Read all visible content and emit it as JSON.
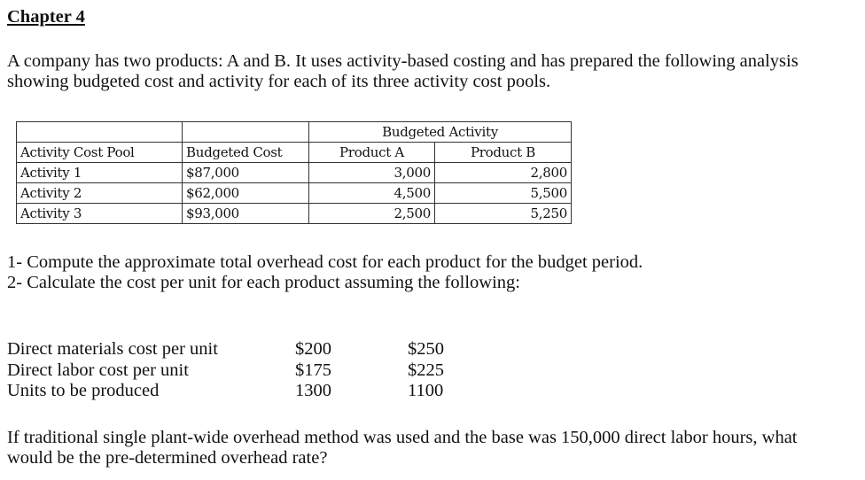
{
  "title": "Chapter 4",
  "intro": [
    "A company has two products: A and B. It uses activity-based costing and has prepared the following analysis",
    "showing budgeted cost and activity for each of its three activity cost pools."
  ],
  "table": {
    "group_header": "Budgeted Activity",
    "headers": [
      "Activity Cost Pool",
      "Budgeted Cost",
      "Product A",
      "Product B"
    ],
    "rows": [
      [
        "Activity 1",
        "$87,000",
        "3,000",
        "2,800"
      ],
      [
        "Activity 2",
        "$62,000",
        "4,500",
        "5,500"
      ],
      [
        "Activity 3",
        "$93,000",
        "2,500",
        "5,250"
      ]
    ]
  },
  "questions": [
    "1- Compute the approximate total overhead cost for each product for the budget period.",
    "2- Calculate the cost per unit for each product assuming the following:"
  ],
  "unit_data": [
    [
      "Direct materials cost per unit",
      "$200",
      "$250"
    ],
    [
      "Direct labor cost per unit",
      "$175",
      "$225"
    ],
    [
      "Units to be produced",
      "1300",
      "1100"
    ]
  ],
  "final_question": [
    "If traditional single plant-wide overhead method was used and the base was 150,000 direct labor hours, what",
    "would be the pre-determined overhead rate?"
  ]
}
